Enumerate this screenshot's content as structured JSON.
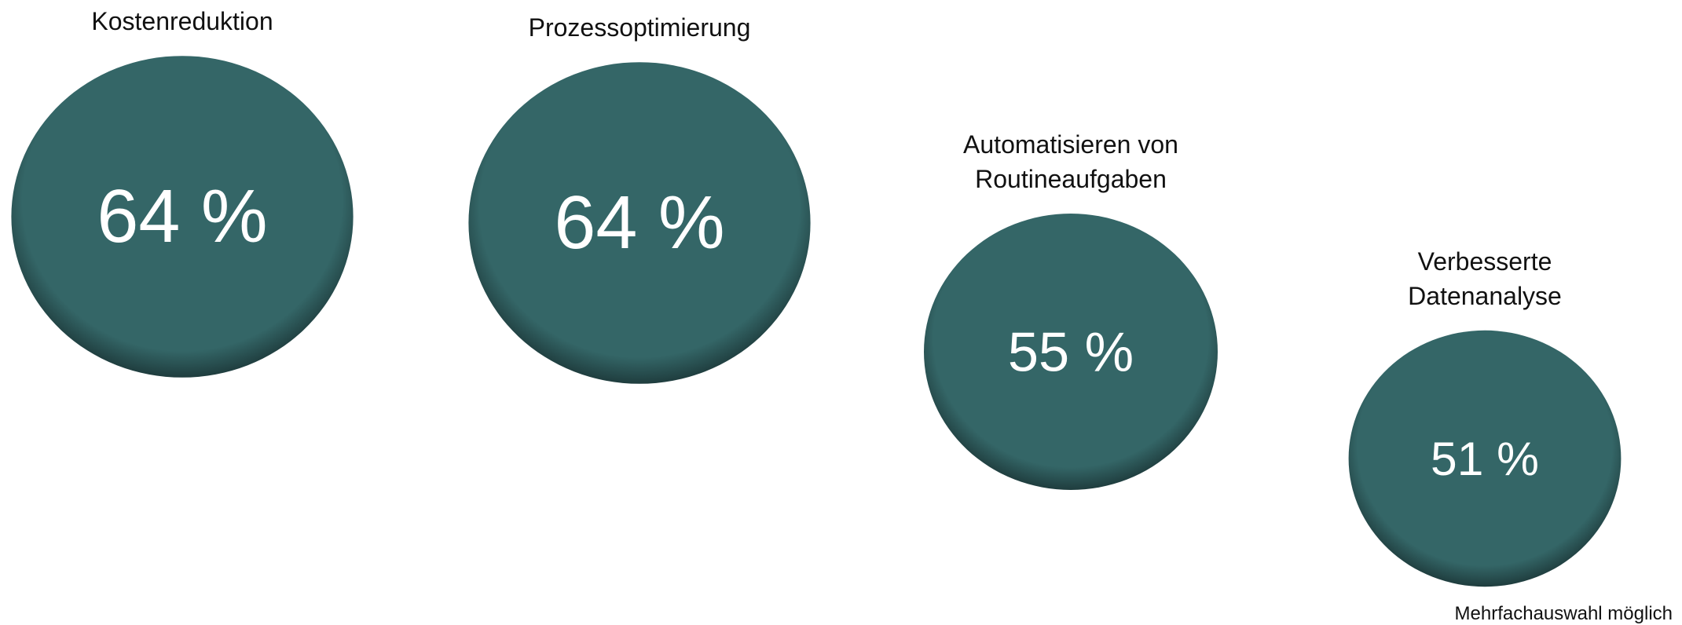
{
  "chart_data": {
    "type": "bubble",
    "categories": [
      "Kostenreduktion",
      "Prozessoptimierung",
      "Automatisieren von Routineaufgaben",
      "Verbesserte Datenanalyse"
    ],
    "values": [
      64,
      64,
      55,
      51
    ],
    "value_labels": [
      "64 %",
      "64 %",
      "55 %",
      "51 %"
    ],
    "color": "#346667",
    "note": "Mehrfachauswahl möglich"
  }
}
